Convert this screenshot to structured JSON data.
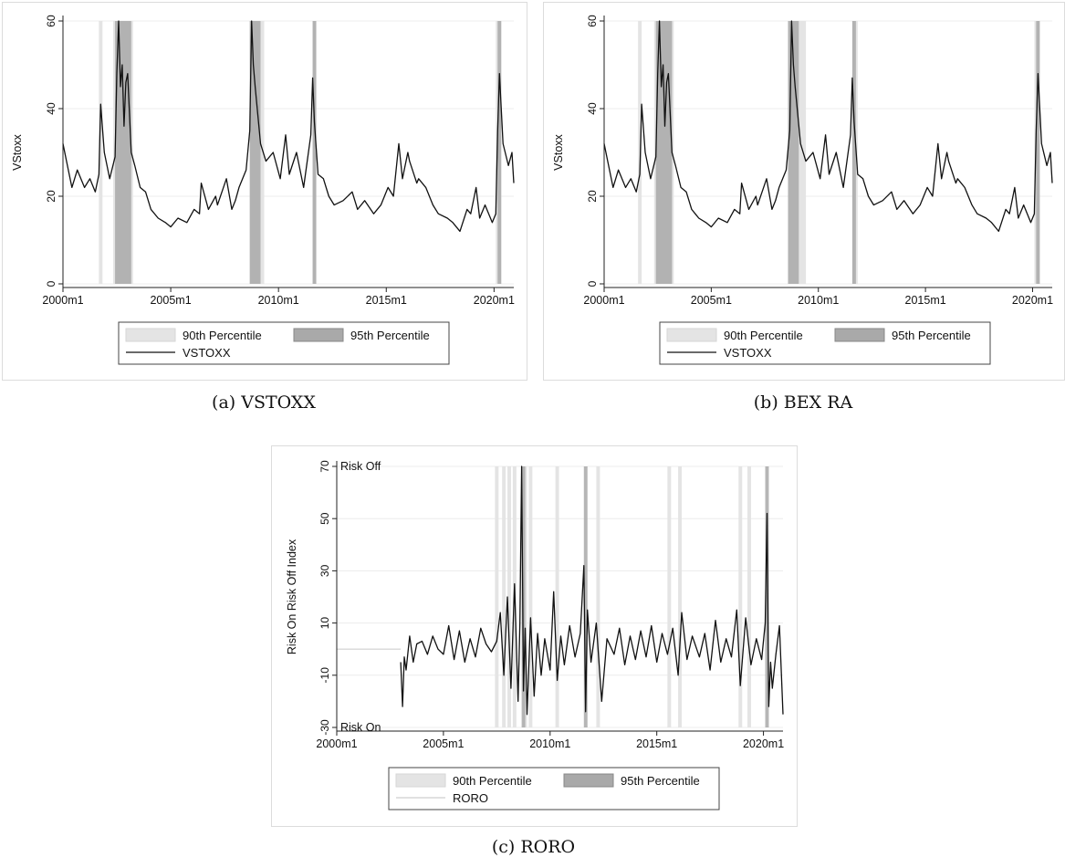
{
  "captions": {
    "a": "(a) VSTOXX",
    "b": "(b) BEX RA",
    "c": "(c) RORO"
  },
  "legend_labels": {
    "p90": "90th Percentile",
    "p95": "95th Percentile"
  },
  "colors": {
    "p90_band": "#e4e4e4",
    "p95_band": "#a9a9a9",
    "line": "#111111",
    "roro_line": "#cfcfcf",
    "grid": "#ececec"
  },
  "chart_data": [
    {
      "id": "a",
      "type": "line",
      "ylabel": "VStoxx",
      "x_ticks": [
        "2000m1",
        "2005m1",
        "2010m1",
        "2015m1",
        "2020m1"
      ],
      "y_ticks": [
        0,
        20,
        40,
        60
      ],
      "ylim": [
        0,
        60
      ],
      "xlim": [
        "2000m1",
        "2020m12"
      ],
      "series": [
        {
          "name": "VSTOXX",
          "x": [
            "2000m1",
            "2000m3",
            "2000m6",
            "2000m9",
            "2001m1",
            "2001m4",
            "2001m7",
            "2001m9",
            "2001m10",
            "2001m12",
            "2002m3",
            "2002m6",
            "2002m7",
            "2002m8",
            "2002m9",
            "2002m10",
            "2002m11",
            "2002m12",
            "2003m1",
            "2003m3",
            "2003m5",
            "2003m8",
            "2003m11",
            "2004m2",
            "2004m6",
            "2004m10",
            "2005m1",
            "2005m5",
            "2005m10",
            "2006m2",
            "2006m5",
            "2006m6",
            "2006m10",
            "2007m2",
            "2007m3",
            "2007m8",
            "2007m11",
            "2008m1",
            "2008m3",
            "2008m7",
            "2008m9",
            "2008m10",
            "2008m11",
            "2008m12",
            "2009m3",
            "2009m6",
            "2009m10",
            "2010m2",
            "2010m5",
            "2010m7",
            "2010m11",
            "2011m3",
            "2011m7",
            "2011m8",
            "2011m9",
            "2011m11",
            "2012m2",
            "2012m5",
            "2012m8",
            "2013m1",
            "2013m6",
            "2013m9",
            "2014m1",
            "2014m6",
            "2014m10",
            "2015m2",
            "2015m5",
            "2015m8",
            "2015m10",
            "2016m1",
            "2016m2",
            "2016m6",
            "2016m7",
            "2016m11",
            "2017m3",
            "2017m6",
            "2017m11",
            "2018m2",
            "2018m6",
            "2018m10",
            "2018m12",
            "2019m3",
            "2019m5",
            "2019m8",
            "2019m12",
            "2020m2",
            "2020m3",
            "2020m4",
            "2020m6",
            "2020m9",
            "2020m11",
            "2020m12"
          ],
          "y": [
            32,
            28,
            22,
            26,
            22,
            24,
            21,
            25,
            41,
            30,
            24,
            29,
            48,
            60,
            45,
            50,
            36,
            46,
            48,
            30,
            27,
            22,
            21,
            17,
            15,
            14,
            13,
            15,
            14,
            17,
            16,
            23,
            17,
            20,
            18,
            24,
            17,
            19,
            22,
            26,
            35,
            61,
            50,
            45,
            32,
            28,
            30,
            24,
            34,
            25,
            30,
            22,
            34,
            47,
            37,
            25,
            24,
            20,
            18,
            19,
            21,
            17,
            19,
            16,
            18,
            22,
            20,
            32,
            24,
            30,
            28,
            23,
            24,
            22,
            18,
            16,
            15,
            14,
            12,
            17,
            16,
            22,
            15,
            18,
            14,
            16,
            35,
            48,
            32,
            27,
            30,
            23
          ]
        }
      ],
      "bands90": [
        [
          "2001m9",
          "2001m10"
        ],
        [
          "2002m5",
          "2003m3"
        ],
        [
          "2008m9",
          "2009m4"
        ],
        [
          "2011m8",
          "2011m9"
        ],
        [
          "2020m2",
          "2020m4"
        ]
      ],
      "bands95": [
        [
          "2002m6",
          "2003m2"
        ],
        [
          "2008m9",
          "2009m2"
        ],
        [
          "2011m8",
          "2011m9"
        ],
        [
          "2020m3",
          "2020m4"
        ]
      ],
      "legend": [
        "90th Percentile",
        "95th Percentile",
        "VSTOXX"
      ]
    },
    {
      "id": "b",
      "type": "line",
      "ylabel": "VStoxx",
      "x_ticks": [
        "2000m1",
        "2005m1",
        "2010m1",
        "2015m1",
        "2020m1"
      ],
      "y_ticks": [
        0,
        20,
        40,
        60
      ],
      "ylim": [
        0,
        60
      ],
      "xlim": [
        "2000m1",
        "2020m12"
      ],
      "series": [
        {
          "name": "VSTOXX",
          "x": [
            "2000m1",
            "2000m3",
            "2000m6",
            "2000m9",
            "2001m1",
            "2001m4",
            "2001m7",
            "2001m9",
            "2001m10",
            "2001m12",
            "2002m3",
            "2002m6",
            "2002m7",
            "2002m8",
            "2002m9",
            "2002m10",
            "2002m11",
            "2002m12",
            "2003m1",
            "2003m3",
            "2003m5",
            "2003m8",
            "2003m11",
            "2004m2",
            "2004m6",
            "2004m10",
            "2005m1",
            "2005m5",
            "2005m10",
            "2006m2",
            "2006m5",
            "2006m6",
            "2006m10",
            "2007m2",
            "2007m3",
            "2007m8",
            "2007m11",
            "2008m1",
            "2008m3",
            "2008m7",
            "2008m9",
            "2008m10",
            "2008m11",
            "2008m12",
            "2009m3",
            "2009m6",
            "2009m10",
            "2010m2",
            "2010m5",
            "2010m7",
            "2010m11",
            "2011m3",
            "2011m7",
            "2011m8",
            "2011m9",
            "2011m11",
            "2012m2",
            "2012m5",
            "2012m8",
            "2013m1",
            "2013m6",
            "2013m9",
            "2014m1",
            "2014m6",
            "2014m10",
            "2015m2",
            "2015m5",
            "2015m8",
            "2015m10",
            "2016m1",
            "2016m2",
            "2016m6",
            "2016m7",
            "2016m11",
            "2017m3",
            "2017m6",
            "2017m11",
            "2018m2",
            "2018m6",
            "2018m10",
            "2018m12",
            "2019m3",
            "2019m5",
            "2019m8",
            "2019m12",
            "2020m2",
            "2020m3",
            "2020m4",
            "2020m6",
            "2020m9",
            "2020m11",
            "2020m12"
          ],
          "y": [
            32,
            28,
            22,
            26,
            22,
            24,
            21,
            25,
            41,
            30,
            24,
            29,
            48,
            60,
            45,
            50,
            36,
            46,
            48,
            30,
            27,
            22,
            21,
            17,
            15,
            14,
            13,
            15,
            14,
            17,
            16,
            23,
            17,
            20,
            18,
            24,
            17,
            19,
            22,
            26,
            35,
            61,
            50,
            45,
            32,
            28,
            30,
            24,
            34,
            25,
            30,
            22,
            34,
            47,
            37,
            25,
            24,
            20,
            18,
            19,
            21,
            17,
            19,
            16,
            18,
            22,
            20,
            32,
            24,
            30,
            28,
            23,
            24,
            22,
            18,
            16,
            15,
            14,
            12,
            17,
            16,
            22,
            15,
            18,
            14,
            16,
            35,
            48,
            32,
            27,
            30,
            23
          ]
        }
      ],
      "bands90": [
        [
          "2001m8",
          "2001m9"
        ],
        [
          "2002m5",
          "2003m3"
        ],
        [
          "2008m8",
          "2009m5"
        ],
        [
          "2011m8",
          "2011m10"
        ],
        [
          "2020m2",
          "2020m4"
        ]
      ],
      "bands95": [
        [
          "2002m6",
          "2003m2"
        ],
        [
          "2008m8",
          "2009m1"
        ],
        [
          "2011m8",
          "2011m9"
        ],
        [
          "2020m3",
          "2020m4"
        ]
      ],
      "legend": [
        "90th Percentile",
        "95th Percentile",
        "VSTOXX"
      ]
    },
    {
      "id": "c",
      "type": "line",
      "ylabel": "Risk On Risk Off Index",
      "x_ticks": [
        "2000m1",
        "2005m1",
        "2010m1",
        "2015m1",
        "2020m1"
      ],
      "y_ticks": [
        -30,
        -10,
        10,
        30,
        50,
        70
      ],
      "ylim": [
        -30,
        70
      ],
      "xlim": [
        "2000m1",
        "2020m12"
      ],
      "annotations": [
        "Risk Off",
        "Risk On"
      ],
      "series": [
        {
          "name": "RORO",
          "x": [
            "2003m1",
            "2003m2",
            "2003m3",
            "2003m4",
            "2003m6",
            "2003m8",
            "2003m10",
            "2004m1",
            "2004m4",
            "2004m7",
            "2004m10",
            "2005m1",
            "2005m4",
            "2005m7",
            "2005m10",
            "2006m1",
            "2006m4",
            "2006m7",
            "2006m10",
            "2007m1",
            "2007m4",
            "2007m7",
            "2007m9",
            "2007m11",
            "2008m1",
            "2008m3",
            "2008m5",
            "2008m7",
            "2008m8",
            "2008m9",
            "2008m10",
            "2008m11",
            "2008m12",
            "2009m2",
            "2009m4",
            "2009m6",
            "2009m8",
            "2009m10",
            "2010m1",
            "2010m3",
            "2010m5",
            "2010m7",
            "2010m9",
            "2010m12",
            "2011m3",
            "2011m6",
            "2011m8",
            "2011m9",
            "2011m10",
            "2011m12",
            "2012m3",
            "2012m6",
            "2012m9",
            "2013m1",
            "2013m4",
            "2013m7",
            "2013m10",
            "2014m1",
            "2014m4",
            "2014m7",
            "2014m10",
            "2015m1",
            "2015m4",
            "2015m7",
            "2015m10",
            "2016m1",
            "2016m3",
            "2016m6",
            "2016m9",
            "2017m1",
            "2017m4",
            "2017m7",
            "2017m10",
            "2018m1",
            "2018m4",
            "2018m7",
            "2018m10",
            "2018m12",
            "2019m3",
            "2019m6",
            "2019m9",
            "2019m12",
            "2020m2",
            "2020m3",
            "2020m4",
            "2020m5",
            "2020m6",
            "2020m8",
            "2020m10",
            "2020m12"
          ],
          "y": [
            -5,
            -22,
            -3,
            -8,
            5,
            -5,
            2,
            3,
            -2,
            5,
            0,
            -2,
            9,
            -4,
            7,
            -5,
            4,
            -3,
            8,
            2,
            -1,
            3,
            14,
            -10,
            20,
            -15,
            25,
            -20,
            10,
            70,
            -16,
            8,
            -25,
            12,
            -18,
            6,
            -10,
            4,
            -8,
            22,
            -12,
            5,
            -6,
            9,
            -3,
            6,
            32,
            -24,
            15,
            -5,
            10,
            -20,
            4,
            -2,
            8,
            -6,
            5,
            -4,
            7,
            -3,
            9,
            -5,
            6,
            -2,
            8,
            -10,
            14,
            -4,
            5,
            -3,
            6,
            -8,
            11,
            -5,
            4,
            -3,
            15,
            -14,
            12,
            -6,
            4,
            -4,
            10,
            52,
            -22,
            -5,
            -15,
            -2,
            9,
            -25
          ]
        }
      ],
      "bands90": [
        [
          "2007m6",
          "2007m7"
        ],
        [
          "2007m10",
          "2007m11"
        ],
        [
          "2008m1",
          "2008m2"
        ],
        [
          "2008m4",
          "2008m5"
        ],
        [
          "2008m10",
          "2008m11"
        ],
        [
          "2009m1",
          "2009m2"
        ],
        [
          "2010m4",
          "2010m5"
        ],
        [
          "2012m3",
          "2012m4"
        ],
        [
          "2015m7",
          "2015m8"
        ],
        [
          "2016m1",
          "2016m2"
        ],
        [
          "2018m11",
          "2018m12"
        ],
        [
          "2019m4",
          "2019m5"
        ]
      ],
      "bands95": [
        [
          "2008m9",
          "2008m10"
        ],
        [
          "2011m8",
          "2011m9"
        ],
        [
          "2020m2",
          "2020m3"
        ]
      ],
      "legend": [
        "90th Percentile",
        "95th Percentile",
        "RORO"
      ]
    }
  ]
}
